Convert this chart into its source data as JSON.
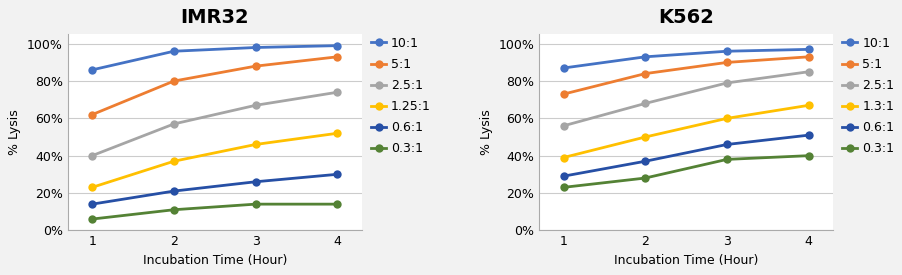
{
  "imr32": {
    "title": "IMR32",
    "series": [
      {
        "label": "10:1",
        "color": "#4472C4",
        "values": [
          0.86,
          0.96,
          0.98,
          0.99
        ]
      },
      {
        "label": "5:1",
        "color": "#ED7D31",
        "values": [
          0.62,
          0.8,
          0.88,
          0.93
        ]
      },
      {
        "label": "2.5:1",
        "color": "#A5A5A5",
        "values": [
          0.4,
          0.57,
          0.67,
          0.74
        ]
      },
      {
        "label": "1.25:1",
        "color": "#FFC000",
        "values": [
          0.23,
          0.37,
          0.46,
          0.52
        ]
      },
      {
        "label": "0.6:1",
        "color": "#264FA5",
        "values": [
          0.14,
          0.21,
          0.26,
          0.3
        ]
      },
      {
        "label": "0.3:1",
        "color": "#548235",
        "values": [
          0.06,
          0.11,
          0.14,
          0.14
        ]
      }
    ]
  },
  "k562": {
    "title": "K562",
    "series": [
      {
        "label": "10:1",
        "color": "#4472C4",
        "values": [
          0.87,
          0.93,
          0.96,
          0.97
        ]
      },
      {
        "label": "5:1",
        "color": "#ED7D31",
        "values": [
          0.73,
          0.84,
          0.9,
          0.93
        ]
      },
      {
        "label": "2.5:1",
        "color": "#A5A5A5",
        "values": [
          0.56,
          0.68,
          0.79,
          0.85
        ]
      },
      {
        "label": "1.3:1",
        "color": "#FFC000",
        "values": [
          0.39,
          0.5,
          0.6,
          0.67
        ]
      },
      {
        "label": "0.6:1",
        "color": "#264FA5",
        "values": [
          0.29,
          0.37,
          0.46,
          0.51
        ]
      },
      {
        "label": "0.3:1",
        "color": "#548235",
        "values": [
          0.23,
          0.28,
          0.38,
          0.4
        ]
      }
    ]
  },
  "x_values": [
    1,
    2,
    3,
    4
  ],
  "xlabel": "Incubation Time (Hour)",
  "ylabel": "% Lysis",
  "ylim": [
    0,
    1.05
  ],
  "yticks": [
    0,
    0.2,
    0.4,
    0.6,
    0.8,
    1.0
  ],
  "ytick_labels": [
    "0%",
    "20%",
    "40%",
    "60%",
    "80%",
    "100%"
  ],
  "marker": "o",
  "marker_size": 6,
  "line_width": 2.0,
  "title_fontsize": 14,
  "label_fontsize": 9,
  "tick_fontsize": 9,
  "legend_fontsize": 9,
  "fig_bg": "#F2F2F2",
  "plot_bg": "#FFFFFF",
  "grid_color": "#CCCCCC"
}
